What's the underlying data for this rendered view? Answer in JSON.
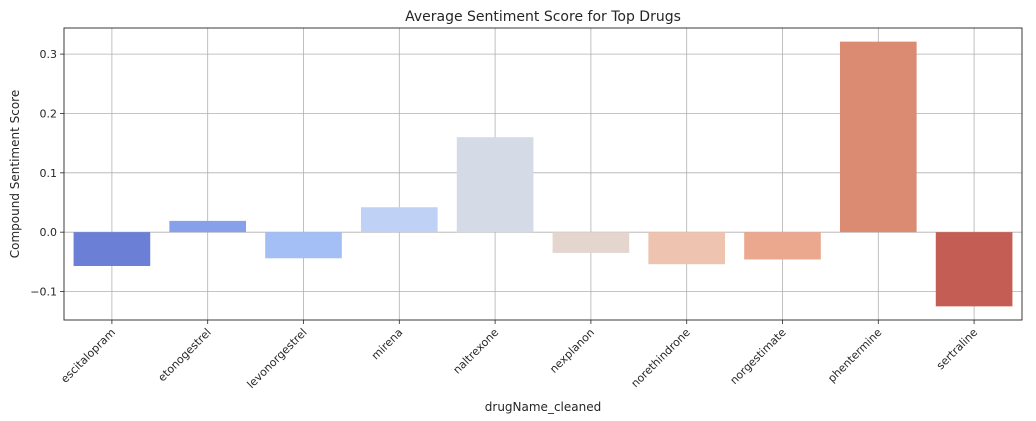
{
  "chart_data": {
    "type": "bar",
    "title": "Average Sentiment Score for Top Drugs",
    "xlabel": "drugName_cleaned",
    "ylabel": "Compound Sentiment Score",
    "categories": [
      "escitalopram",
      "etonogestrel",
      "levonorgestrel",
      "mirena",
      "naltrexone",
      "nexplanon",
      "norethindrone",
      "norgestimate",
      "phentermine",
      "sertraline"
    ],
    "values": [
      -0.057,
      0.019,
      -0.044,
      0.042,
      0.16,
      -0.035,
      -0.054,
      -0.046,
      0.321,
      -0.125
    ],
    "colors": [
      "#6b7fd7",
      "#87a0ea",
      "#a4bef6",
      "#bfd2f6",
      "#d4dbe7",
      "#e4d6cf",
      "#eec4b1",
      "#eba88e",
      "#db8b72",
      "#c45e54"
    ],
    "ylim": [
      -0.148,
      0.344
    ],
    "yticks": [
      -0.1,
      0.0,
      0.1,
      0.2,
      0.3
    ],
    "ytick_labels": [
      "−0.1",
      "0.0",
      "0.1",
      "0.2",
      "0.3"
    ],
    "grid": true,
    "legend": "none"
  }
}
